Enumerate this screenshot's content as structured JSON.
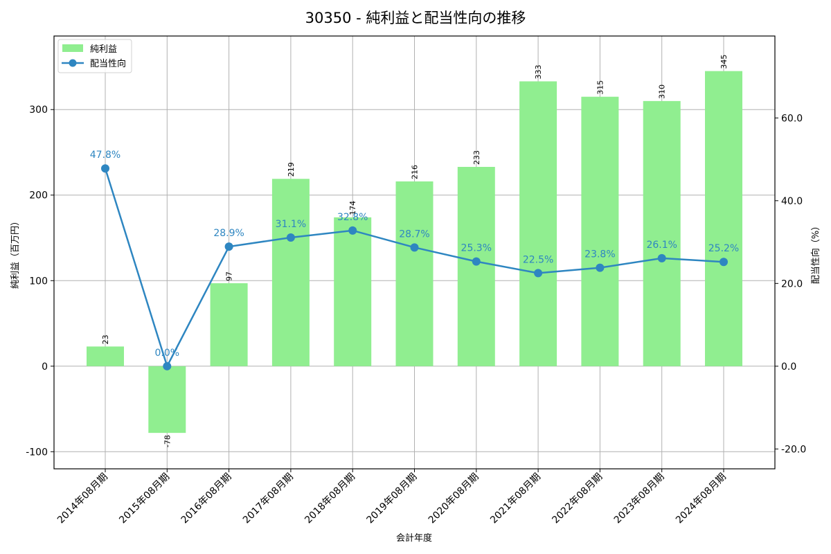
{
  "chart_data": {
    "type": "bar+line",
    "title": "30350 - 純利益と配当性向の推移",
    "xlabel": "会計年度",
    "ylabel_left": "純利益（百万円）",
    "ylabel_right": "配当性向（%）",
    "categories": [
      "2014年08月期",
      "2015年08月期",
      "2016年08月期",
      "2017年08月期",
      "2018年08月期",
      "2019年08月期",
      "2020年08月期",
      "2021年08月期",
      "2022年08月期",
      "2023年08月期",
      "2024年08月期"
    ],
    "series": [
      {
        "name": "純利益",
        "type": "bar",
        "axis": "left",
        "color": "#90ee90",
        "values": [
          23,
          -78,
          97,
          219,
          174,
          216,
          233,
          333,
          315,
          310,
          345
        ]
      },
      {
        "name": "配当性向",
        "type": "line",
        "axis": "right",
        "color": "#2e86c1",
        "values": [
          47.8,
          0.0,
          28.9,
          31.1,
          32.8,
          28.7,
          25.3,
          22.5,
          23.8,
          26.1,
          25.2
        ]
      }
    ],
    "ylim_left": [
      -120,
      386
    ],
    "ylim_right": [
      -24.8,
      79.8
    ],
    "yticks_left": [
      -100,
      0,
      100,
      200,
      300
    ],
    "yticks_right": [
      -20.0,
      0.0,
      20.0,
      40.0,
      60.0
    ],
    "grid": true,
    "legend_position": "upper left"
  },
  "legend": {
    "bar_label": "純利益",
    "line_label": "配当性向"
  }
}
